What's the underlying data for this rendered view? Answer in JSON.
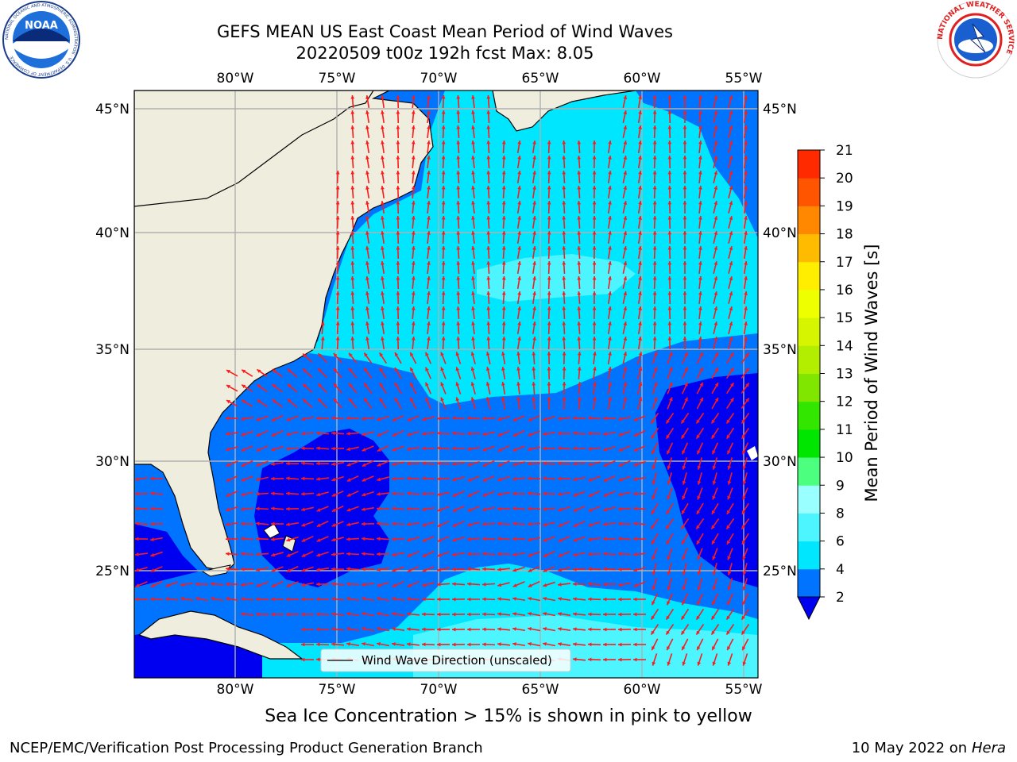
{
  "header": {
    "title_line1": "GEFS MEAN US East Coast Mean Period of Wind Waves",
    "title_line2": "20220509 t00z 192h fcst   Max: 8.05"
  },
  "logos": {
    "noaa_text": "NOAA",
    "noaa_ring_text": "NATIONAL OCEANIC AND ATMOSPHERIC ADMINISTRATION · U.S. DEPARTMENT OF COMMERCE",
    "nws_ring_text": "NATIONAL WEATHER SERVICE"
  },
  "map": {
    "lon_ticks": [
      "80°W",
      "75°W",
      "70°W",
      "65°W",
      "60°W",
      "55°W"
    ],
    "lat_ticks": [
      "45°N",
      "40°N",
      "35°N",
      "30°N",
      "25°N"
    ],
    "legend_label": "Wind Wave Direction (unscaled)"
  },
  "colorbar": {
    "label": "Mean Period of Wind Waves [s]",
    "ticks": [
      "2",
      "4",
      "6",
      "8",
      "9",
      "10",
      "11",
      "12",
      "13",
      "14",
      "15",
      "16",
      "17",
      "18",
      "19",
      "20",
      "21"
    ],
    "colors": [
      "#0073ff",
      "#00e6ff",
      "#4cf5ff",
      "#99ffff",
      "#4cff7f",
      "#00e600",
      "#33e600",
      "#80e600",
      "#b3ee00",
      "#d6f500",
      "#eeff00",
      "#ffee00",
      "#ffbb00",
      "#ff8800",
      "#ff5500",
      "#ff2a00"
    ],
    "under_color": "#0000f0"
  },
  "colors": {
    "land": "#efedde",
    "arrow": "#ff1a1a",
    "grid": "#b0b0b0"
  },
  "footer": {
    "note": "Sea Ice Concentration > 15% is shown in pink to yellow",
    "credit": "NCEP/EMC/Verification Post Processing Product Generation Branch",
    "date": "10 May 2022 on",
    "machine": "Hera"
  }
}
